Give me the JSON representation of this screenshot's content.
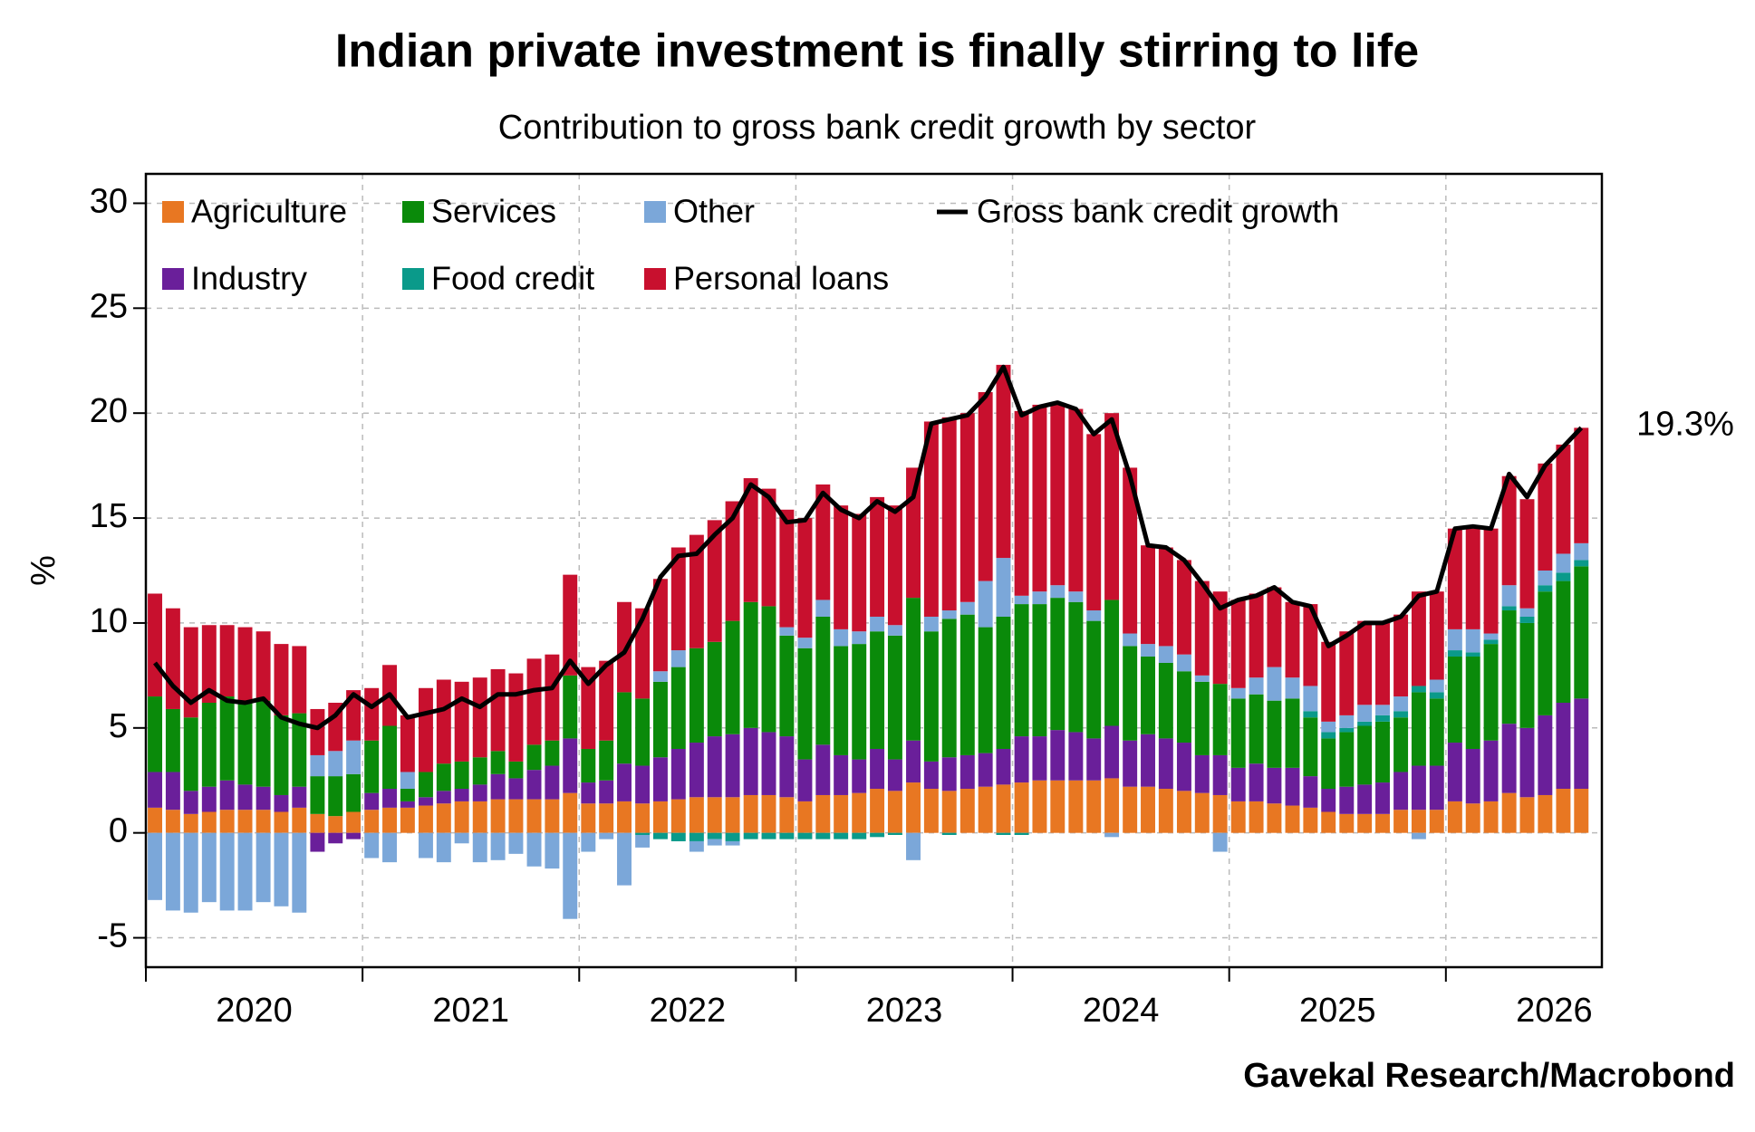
{
  "chart_data": {
    "type": "bar",
    "stacked": true,
    "title": "Indian private investment is finally stirring to life",
    "subtitle": "Contribution to gross bank credit growth by sector",
    "y_label": "%",
    "annotation": "19.3%",
    "source": "Gavekal Research/Macrobond",
    "legend": "upper left",
    "grid": true,
    "xlim": [
      2020,
      2026.72
    ],
    "xticks": [
      2020,
      2021,
      2022,
      2023,
      2024,
      2025,
      2026
    ],
    "ylim": [
      -6.4,
      31.4
    ],
    "yticks": [
      -5,
      0,
      5,
      10,
      15,
      20,
      25,
      30
    ],
    "x": [
      2020.042,
      2020.125,
      2020.208,
      2020.292,
      2020.375,
      2020.458,
      2020.542,
      2020.625,
      2020.708,
      2020.792,
      2020.875,
      2020.958,
      2021.042,
      2021.125,
      2021.208,
      2021.292,
      2021.375,
      2021.458,
      2021.542,
      2021.625,
      2021.708,
      2021.792,
      2021.875,
      2021.958,
      2022.042,
      2022.125,
      2022.208,
      2022.292,
      2022.375,
      2022.458,
      2022.542,
      2022.625,
      2022.708,
      2022.792,
      2022.875,
      2022.958,
      2023.042,
      2023.125,
      2023.208,
      2023.292,
      2023.375,
      2023.458,
      2023.542,
      2023.625,
      2023.708,
      2023.792,
      2023.875,
      2023.958,
      2024.042,
      2024.125,
      2024.208,
      2024.292,
      2024.375,
      2024.458,
      2024.542,
      2024.625,
      2024.708,
      2024.792,
      2024.875,
      2024.958,
      2025.042,
      2025.125,
      2025.208,
      2025.292,
      2025.375,
      2025.458,
      2025.542,
      2025.625,
      2025.708,
      2025.792,
      2025.875,
      2025.958,
      2026.042,
      2026.125,
      2026.208,
      2026.292,
      2026.375,
      2026.458,
      2026.542,
      2026.625
    ],
    "series": [
      {
        "name": "Agriculture",
        "color": "#e87722",
        "values": [
          1.2,
          1.1,
          0.9,
          1.0,
          1.1,
          1.1,
          1.1,
          1.0,
          1.2,
          0.9,
          0.8,
          1.0,
          1.1,
          1.2,
          1.2,
          1.3,
          1.4,
          1.5,
          1.5,
          1.6,
          1.6,
          1.6,
          1.6,
          1.9,
          1.4,
          1.4,
          1.5,
          1.4,
          1.5,
          1.6,
          1.7,
          1.7,
          1.7,
          1.8,
          1.8,
          1.7,
          1.5,
          1.8,
          1.8,
          1.9,
          2.1,
          2.0,
          2.4,
          2.1,
          2.0,
          2.1,
          2.2,
          2.3,
          2.4,
          2.5,
          2.5,
          2.5,
          2.5,
          2.6,
          2.2,
          2.2,
          2.1,
          2.0,
          1.9,
          1.8,
          1.5,
          1.5,
          1.4,
          1.3,
          1.2,
          1.0,
          0.9,
          0.9,
          0.9,
          1.1,
          1.1,
          1.1,
          1.5,
          1.4,
          1.5,
          1.9,
          1.7,
          1.8,
          2.1,
          2.1
        ]
      },
      {
        "name": "Industry",
        "color": "#6a1f9a",
        "values": [
          1.7,
          1.8,
          1.1,
          1.2,
          1.4,
          1.2,
          1.1,
          0.8,
          1.0,
          -0.9,
          -0.5,
          -0.3,
          0.8,
          0.9,
          0.3,
          0.4,
          0.6,
          0.6,
          0.8,
          1.2,
          1.0,
          1.4,
          1.6,
          2.6,
          1.0,
          1.1,
          1.8,
          1.8,
          2.1,
          2.4,
          2.6,
          2.9,
          3.0,
          3.2,
          3.0,
          2.9,
          2.0,
          2.4,
          1.9,
          1.6,
          1.9,
          1.5,
          2.0,
          1.3,
          1.6,
          1.6,
          1.6,
          1.7,
          2.2,
          2.1,
          2.4,
          2.3,
          2.0,
          2.5,
          2.2,
          2.5,
          2.4,
          2.3,
          1.8,
          1.9,
          1.6,
          1.8,
          1.7,
          1.8,
          1.5,
          1.1,
          1.3,
          1.4,
          1.5,
          1.8,
          2.1,
          2.1,
          2.8,
          2.6,
          2.9,
          3.3,
          3.3,
          3.8,
          4.1,
          4.3
        ]
      },
      {
        "name": "Services",
        "color": "#0a8a0a",
        "values": [
          3.6,
          3.0,
          3.5,
          4.0,
          4.0,
          4.0,
          4.1,
          3.8,
          3.5,
          1.8,
          1.9,
          1.8,
          2.5,
          3.0,
          0.6,
          1.2,
          1.3,
          1.3,
          1.3,
          1.1,
          0.8,
          1.2,
          1.2,
          3.0,
          1.6,
          1.9,
          3.4,
          3.2,
          3.6,
          3.9,
          4.5,
          4.5,
          5.4,
          6.0,
          6.0,
          4.8,
          5.3,
          6.1,
          5.2,
          5.5,
          5.6,
          5.9,
          6.8,
          6.2,
          6.6,
          6.7,
          6.0,
          6.3,
          6.3,
          6.3,
          6.3,
          6.2,
          5.6,
          6.0,
          4.5,
          3.7,
          3.6,
          3.4,
          3.5,
          3.4,
          3.3,
          3.3,
          3.2,
          3.3,
          2.8,
          2.4,
          2.6,
          2.8,
          2.9,
          2.6,
          3.5,
          3.2,
          4.1,
          4.4,
          4.6,
          5.4,
          5.0,
          5.9,
          5.8,
          6.3
        ]
      },
      {
        "name": "Food credit",
        "color": "#0a9a8a",
        "values": [
          0,
          0,
          0,
          0,
          0,
          0,
          0,
          0,
          0,
          0,
          0,
          0,
          0,
          0,
          0,
          0,
          0,
          0,
          0,
          0,
          0,
          0,
          0,
          0,
          0,
          0,
          0,
          -0.1,
          -0.3,
          -0.4,
          -0.4,
          -0.3,
          -0.4,
          -0.3,
          -0.3,
          -0.3,
          -0.3,
          -0.3,
          -0.3,
          -0.3,
          -0.2,
          -0.1,
          0,
          0,
          -0.1,
          0,
          0,
          -0.1,
          -0.1,
          0,
          0,
          0,
          0,
          0,
          0,
          0,
          0,
          0,
          0,
          0,
          0,
          0,
          0,
          0,
          0.3,
          0.3,
          0.2,
          0.2,
          0.3,
          0.3,
          0.3,
          0.3,
          0.3,
          0.2,
          0.2,
          0.2,
          0.3,
          0.3,
          0.4,
          0.3
        ]
      },
      {
        "name": "Other",
        "color": "#7ba7d9",
        "values": [
          -3.2,
          -3.7,
          -3.8,
          -3.3,
          -3.7,
          -3.7,
          -3.3,
          -3.5,
          -3.8,
          1.0,
          1.2,
          1.6,
          -1.2,
          -1.4,
          0.8,
          -1.2,
          -1.4,
          -0.5,
          -1.4,
          -1.3,
          -1.0,
          -1.6,
          -1.7,
          -4.1,
          -0.9,
          -0.3,
          -2.5,
          -0.6,
          0.5,
          0.8,
          -0.5,
          -0.3,
          -0.2,
          0,
          0,
          0.4,
          0.5,
          0.8,
          0.8,
          0.6,
          0.7,
          0.5,
          -1.3,
          0.7,
          0.4,
          0.6,
          2.2,
          2.8,
          0.4,
          0.6,
          0.6,
          0.5,
          0.5,
          -0.2,
          0.6,
          0.6,
          0.8,
          0.8,
          0.3,
          -0.9,
          0.5,
          0.8,
          1.6,
          1.0,
          1.2,
          0.5,
          0.6,
          0.8,
          0.5,
          0.7,
          -0.3,
          0.6,
          1.0,
          1.1,
          0.3,
          1.0,
          0.4,
          0.7,
          0.9,
          0.8
        ]
      },
      {
        "name": "Personal loans",
        "color": "#c8102e",
        "values": [
          4.9,
          4.8,
          4.3,
          3.7,
          3.4,
          3.5,
          3.3,
          3.4,
          3.2,
          2.2,
          2.3,
          2.4,
          2.5,
          2.9,
          2.7,
          4.0,
          4.0,
          3.8,
          3.8,
          3.9,
          4.2,
          4.1,
          4.1,
          4.8,
          3.9,
          3.8,
          4.3,
          4.3,
          4.4,
          4.9,
          5.4,
          5.8,
          5.7,
          5.9,
          5.6,
          5.6,
          5.7,
          5.5,
          5.9,
          5.6,
          5.7,
          5.7,
          6.2,
          9.3,
          9.2,
          9.0,
          9.0,
          9.2,
          8.8,
          8.9,
          8.7,
          8.7,
          8.4,
          8.9,
          7.9,
          4.7,
          4.7,
          4.5,
          4.5,
          4.4,
          4.2,
          4.0,
          3.8,
          3.6,
          3.9,
          3.8,
          4.0,
          4.0,
          3.9,
          3.9,
          4.5,
          4.2,
          4.8,
          4.8,
          5.0,
          5.2,
          5.2,
          5.1,
          5.2,
          5.5
        ]
      },
      {
        "name": "Gross bank credit growth",
        "type": "line",
        "color": "#000000",
        "values": [
          8.1,
          7.0,
          6.2,
          6.8,
          6.3,
          6.2,
          6.4,
          5.5,
          5.2,
          5.0,
          5.6,
          6.6,
          6.0,
          6.6,
          5.5,
          5.7,
          5.9,
          6.4,
          6.0,
          6.6,
          6.6,
          6.8,
          6.9,
          8.2,
          7.1,
          8.0,
          8.6,
          10.2,
          12.2,
          13.2,
          13.3,
          14.2,
          15.0,
          16.6,
          16.0,
          14.8,
          14.9,
          16.2,
          15.4,
          15.0,
          15.8,
          15.3,
          16.0,
          19.5,
          19.7,
          19.9,
          20.8,
          22.2,
          19.9,
          20.3,
          20.5,
          20.2,
          19.0,
          19.7,
          17.0,
          13.7,
          13.6,
          13.0,
          11.9,
          10.7,
          11.1,
          11.3,
          11.7,
          11.0,
          10.8,
          8.9,
          9.4,
          10.0,
          10.0,
          10.3,
          11.3,
          11.5,
          14.5,
          14.6,
          14.5,
          17.1,
          16.0,
          17.5,
          18.4,
          19.3
        ]
      }
    ]
  }
}
